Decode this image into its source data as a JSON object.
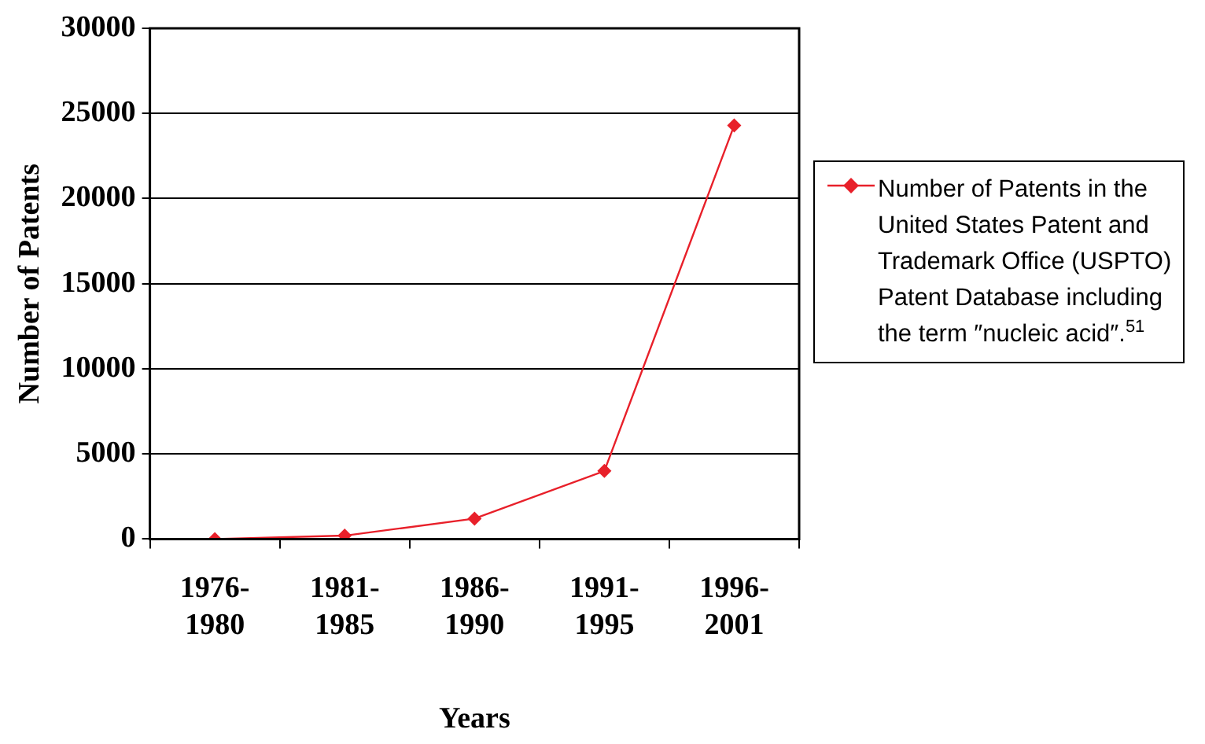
{
  "chart_data": {
    "type": "line",
    "xlabel": "Years",
    "ylabel": "Number of Patents",
    "categories": [
      "1976-1980",
      "1981-1985",
      "1986-1990",
      "1991-1995",
      "1996-2001"
    ],
    "series": [
      {
        "name": "Number of Patents in the United States Patent and Trademark Office (USPTO) Patent Database including the term ″nucleic acid″.$^{51}$",
        "color": "#e8202a",
        "values": [
          0,
          200,
          1200,
          4000,
          24300
        ]
      }
    ],
    "ylim": [
      0,
      30000
    ],
    "yticks": [
      0,
      5000,
      10000,
      15000,
      20000,
      25000,
      30000
    ],
    "grid": "y",
    "legend": "right",
    "marker": "diamond",
    "line_style": "solid"
  }
}
